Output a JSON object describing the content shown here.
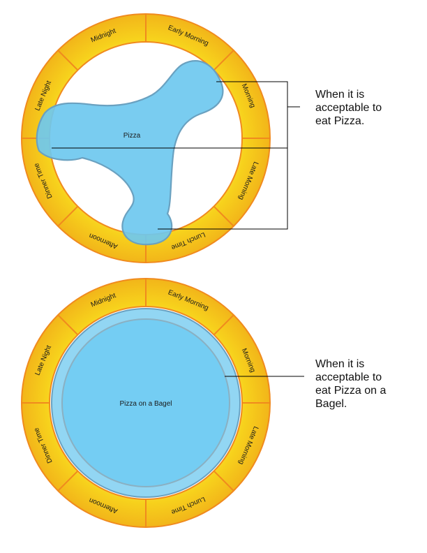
{
  "segments": [
    "Midnight",
    "Early Morning",
    "Morning",
    "Late Morning",
    "Lunch Time",
    "Afternoon",
    "Dinner Time",
    "Late Night"
  ],
  "colors": {
    "ring_fill": "#f7d21c",
    "ring_edge": "#f08a1e",
    "blob_fill": "#6ec8ef",
    "blob_stroke": "#6aa1c0",
    "leader": "#000000"
  },
  "diagrams": [
    {
      "center_label": "Pizza",
      "callout": "When it is\nacceptable to\neat Pizza."
    },
    {
      "center_label": "Pizza on a Bagel",
      "callout": "When it is\nacceptable to\neat Pizza on a\nBagel."
    }
  ]
}
